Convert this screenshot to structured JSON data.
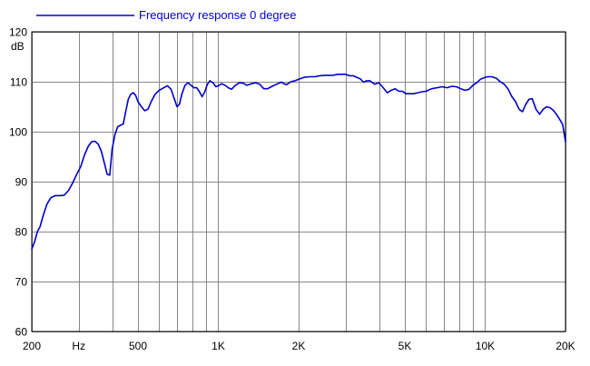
{
  "chart_data": {
    "type": "line",
    "title": "",
    "xlabel": "Hz",
    "ylabel": "dB",
    "x_scale": "log",
    "xlim": [
      200,
      20000
    ],
    "ylim": [
      60,
      120
    ],
    "grid": true,
    "legend_position": "top-left",
    "x_ticks": [
      {
        "value": 200,
        "label": "200"
      },
      {
        "value": 500,
        "label": "500"
      },
      {
        "value": 1000,
        "label": "1K"
      },
      {
        "value": 2000,
        "label": "2K"
      },
      {
        "value": 5000,
        "label": "5K"
      },
      {
        "value": 10000,
        "label": "10K"
      },
      {
        "value": 20000,
        "label": "20K"
      }
    ],
    "x_unit_label": {
      "value": 300,
      "label": "Hz"
    },
    "x_gridlines": [
      200,
      300,
      400,
      500,
      600,
      700,
      800,
      900,
      1000,
      2000,
      3000,
      4000,
      5000,
      6000,
      7000,
      8000,
      9000,
      10000,
      20000
    ],
    "y_ticks": [
      60,
      70,
      80,
      90,
      100,
      110,
      120
    ],
    "series": [
      {
        "name": "Frequency response 0 degree",
        "color": "#0000cc",
        "points": [
          [
            200,
            76.5
          ],
          [
            205,
            78.0
          ],
          [
            210,
            80.0
          ],
          [
            215,
            81.0
          ],
          [
            220,
            83.0
          ],
          [
            228,
            85.5
          ],
          [
            236,
            86.8
          ],
          [
            245,
            87.2
          ],
          [
            255,
            87.2
          ],
          [
            265,
            87.3
          ],
          [
            275,
            88.3
          ],
          [
            285,
            89.8
          ],
          [
            295,
            91.5
          ],
          [
            305,
            93.0
          ],
          [
            315,
            95.3
          ],
          [
            325,
            97.0
          ],
          [
            335,
            98.0
          ],
          [
            345,
            98.1
          ],
          [
            355,
            97.5
          ],
          [
            365,
            96.0
          ],
          [
            375,
            93.5
          ],
          [
            383,
            91.5
          ],
          [
            392,
            91.3
          ],
          [
            400,
            96.5
          ],
          [
            410,
            99.5
          ],
          [
            420,
            101.0
          ],
          [
            430,
            101.3
          ],
          [
            440,
            101.5
          ],
          [
            450,
            104.0
          ],
          [
            460,
            106.5
          ],
          [
            470,
            107.5
          ],
          [
            480,
            107.8
          ],
          [
            490,
            107.3
          ],
          [
            500,
            106.0
          ],
          [
            515,
            105.0
          ],
          [
            530,
            104.2
          ],
          [
            545,
            104.5
          ],
          [
            560,
            106.0
          ],
          [
            580,
            107.5
          ],
          [
            600,
            108.3
          ],
          [
            625,
            108.8
          ],
          [
            645,
            109.2
          ],
          [
            665,
            108.5
          ],
          [
            685,
            106.5
          ],
          [
            700,
            105.0
          ],
          [
            715,
            105.5
          ],
          [
            730,
            107.5
          ],
          [
            750,
            109.3
          ],
          [
            770,
            109.8
          ],
          [
            790,
            109.3
          ],
          [
            810,
            108.8
          ],
          [
            830,
            108.8
          ],
          [
            850,
            108.0
          ],
          [
            870,
            107.0
          ],
          [
            890,
            108.0
          ],
          [
            910,
            109.5
          ],
          [
            930,
            110.2
          ],
          [
            955,
            109.8
          ],
          [
            980,
            109.0
          ],
          [
            1000,
            109.2
          ],
          [
            1030,
            109.6
          ],
          [
            1060,
            109.3
          ],
          [
            1090,
            108.8
          ],
          [
            1120,
            108.5
          ],
          [
            1160,
            109.3
          ],
          [
            1200,
            109.8
          ],
          [
            1240,
            109.7
          ],
          [
            1280,
            109.3
          ],
          [
            1330,
            109.6
          ],
          [
            1380,
            109.8
          ],
          [
            1430,
            109.5
          ],
          [
            1480,
            108.6
          ],
          [
            1530,
            108.6
          ],
          [
            1580,
            109.0
          ],
          [
            1650,
            109.5
          ],
          [
            1720,
            109.9
          ],
          [
            1800,
            109.4
          ],
          [
            1870,
            110.0
          ],
          [
            1940,
            110.2
          ],
          [
            2000,
            110.5
          ],
          [
            2100,
            110.9
          ],
          [
            2200,
            111.0
          ],
          [
            2300,
            111.0
          ],
          [
            2400,
            111.2
          ],
          [
            2500,
            111.3
          ],
          [
            2600,
            111.3
          ],
          [
            2700,
            111.3
          ],
          [
            2800,
            111.5
          ],
          [
            2900,
            111.5
          ],
          [
            3000,
            111.5
          ],
          [
            3100,
            111.2
          ],
          [
            3200,
            111.2
          ],
          [
            3300,
            110.9
          ],
          [
            3400,
            110.6
          ],
          [
            3500,
            109.9
          ],
          [
            3600,
            110.2
          ],
          [
            3700,
            110.2
          ],
          [
            3850,
            109.5
          ],
          [
            4000,
            109.8
          ],
          [
            4150,
            108.8
          ],
          [
            4300,
            107.8
          ],
          [
            4450,
            108.3
          ],
          [
            4600,
            108.6
          ],
          [
            4750,
            108.1
          ],
          [
            4900,
            108.1
          ],
          [
            5050,
            107.6
          ],
          [
            5200,
            107.6
          ],
          [
            5400,
            107.6
          ],
          [
            5600,
            107.8
          ],
          [
            5800,
            108.0
          ],
          [
            6000,
            108.1
          ],
          [
            6300,
            108.6
          ],
          [
            6600,
            108.8
          ],
          [
            6900,
            109.0
          ],
          [
            7200,
            108.8
          ],
          [
            7500,
            109.1
          ],
          [
            7800,
            109.0
          ],
          [
            8100,
            108.6
          ],
          [
            8400,
            108.3
          ],
          [
            8700,
            108.5
          ],
          [
            9000,
            109.3
          ],
          [
            9300,
            109.8
          ],
          [
            9600,
            110.5
          ],
          [
            9900,
            110.8
          ],
          [
            10200,
            111.0
          ],
          [
            10600,
            111.0
          ],
          [
            11000,
            110.7
          ],
          [
            11400,
            110.0
          ],
          [
            11800,
            109.5
          ],
          [
            12200,
            108.5
          ],
          [
            12600,
            107.0
          ],
          [
            13000,
            106.0
          ],
          [
            13400,
            104.5
          ],
          [
            13800,
            104.0
          ],
          [
            14200,
            105.5
          ],
          [
            14600,
            106.5
          ],
          [
            15000,
            106.6
          ],
          [
            15500,
            104.5
          ],
          [
            16000,
            103.5
          ],
          [
            16500,
            104.5
          ],
          [
            17000,
            105.0
          ],
          [
            17500,
            104.8
          ],
          [
            18000,
            104.3
          ],
          [
            18500,
            103.5
          ],
          [
            19000,
            102.5
          ],
          [
            19500,
            101.5
          ],
          [
            20000,
            98.0
          ]
        ]
      }
    ]
  }
}
